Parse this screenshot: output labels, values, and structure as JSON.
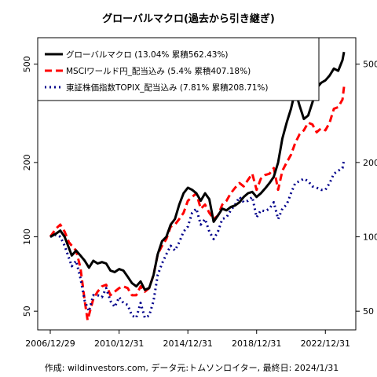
{
  "chart_data": {
    "type": "line",
    "title": "グローバルマクロ(過去から引き継ぎ)",
    "footer": "作成: wildinvestors.com, データ元:トムソンロイター, 最終日: 2024/1/31",
    "y_scale": "log",
    "ylim": [
      42,
      640
    ],
    "y_ticks": [
      {
        "value": 50,
        "label": "50"
      },
      {
        "value": 100,
        "label": "100"
      },
      {
        "value": 200,
        "label": "200"
      },
      {
        "value": 500,
        "label": "500"
      }
    ],
    "x_ticks": [
      {
        "value": "2006-12-29",
        "label": "2006/12/29"
      },
      {
        "value": "2010-12-31",
        "label": "2010/12/31"
      },
      {
        "value": "2014-12-31",
        "label": "2014/12/31"
      },
      {
        "value": "2018-12-31",
        "label": "2018/12/31"
      },
      {
        "value": "2022-12-31",
        "label": "2022/12/31"
      }
    ],
    "x_range": [
      "2006-12-29",
      "2024-01-31"
    ],
    "grid": false,
    "legend_position": "top-left",
    "series": [
      {
        "name": "グローバルマクロ (13.04% 累積562.43%)",
        "color": "#000000",
        "style": "solid",
        "points": [
          [
            "2006-12-29",
            100
          ],
          [
            "2007-04-30",
            103
          ],
          [
            "2007-07-31",
            106
          ],
          [
            "2007-10-31",
            100
          ],
          [
            "2008-01-31",
            90
          ],
          [
            "2008-03-31",
            84
          ],
          [
            "2008-06-30",
            88
          ],
          [
            "2008-09-30",
            84
          ],
          [
            "2008-12-31",
            80
          ],
          [
            "2009-03-31",
            75
          ],
          [
            "2009-06-30",
            80
          ],
          [
            "2009-09-30",
            78
          ],
          [
            "2009-12-31",
            79
          ],
          [
            "2010-03-31",
            78
          ],
          [
            "2010-06-30",
            73
          ],
          [
            "2010-09-30",
            72
          ],
          [
            "2010-12-31",
            74
          ],
          [
            "2011-03-31",
            73
          ],
          [
            "2011-06-30",
            69
          ],
          [
            "2011-09-30",
            65
          ],
          [
            "2011-12-31",
            63
          ],
          [
            "2012-03-31",
            66
          ],
          [
            "2012-06-30",
            61
          ],
          [
            "2012-09-30",
            62
          ],
          [
            "2012-12-31",
            70
          ],
          [
            "2013-03-31",
            85
          ],
          [
            "2013-06-30",
            96
          ],
          [
            "2013-09-30",
            100
          ],
          [
            "2013-12-31",
            112
          ],
          [
            "2014-03-31",
            118
          ],
          [
            "2014-06-30",
            135
          ],
          [
            "2014-09-30",
            150
          ],
          [
            "2014-12-31",
            158
          ],
          [
            "2015-03-31",
            155
          ],
          [
            "2015-06-30",
            150
          ],
          [
            "2015-09-30",
            140
          ],
          [
            "2015-12-31",
            150
          ],
          [
            "2016-03-31",
            142
          ],
          [
            "2016-06-30",
            115
          ],
          [
            "2016-09-30",
            122
          ],
          [
            "2016-12-31",
            130
          ],
          [
            "2017-03-31",
            128
          ],
          [
            "2017-06-30",
            132
          ],
          [
            "2017-09-30",
            134
          ],
          [
            "2017-12-31",
            138
          ],
          [
            "2018-03-31",
            145
          ],
          [
            "2018-06-30",
            150
          ],
          [
            "2018-09-30",
            152
          ],
          [
            "2018-12-31",
            145
          ],
          [
            "2019-03-31",
            150
          ],
          [
            "2019-06-30",
            157
          ],
          [
            "2019-09-30",
            165
          ],
          [
            "2019-12-31",
            175
          ],
          [
            "2020-03-31",
            200
          ],
          [
            "2020-06-30",
            250
          ],
          [
            "2020-09-30",
            290
          ],
          [
            "2020-12-31",
            330
          ],
          [
            "2021-03-31",
            390
          ],
          [
            "2021-06-30",
            340
          ],
          [
            "2021-09-30",
            300
          ],
          [
            "2021-12-31",
            310
          ],
          [
            "2022-03-31",
            350
          ],
          [
            "2022-06-30",
            400
          ],
          [
            "2022-09-30",
            420
          ],
          [
            "2022-12-31",
            430
          ],
          [
            "2023-03-31",
            450
          ],
          [
            "2023-06-30",
            480
          ],
          [
            "2023-09-30",
            470
          ],
          [
            "2023-12-31",
            520
          ],
          [
            "2024-01-31",
            560
          ]
        ]
      },
      {
        "name": "MSCIワールド円_配当込み (5.4% 累積407.18%)",
        "color": "#ff0000",
        "style": "dashed",
        "points": [
          [
            "2006-12-29",
            100
          ],
          [
            "2007-04-30",
            108
          ],
          [
            "2007-07-31",
            112
          ],
          [
            "2007-10-31",
            105
          ],
          [
            "2008-01-31",
            95
          ],
          [
            "2008-03-31",
            92
          ],
          [
            "2008-06-30",
            88
          ],
          [
            "2008-09-30",
            75
          ],
          [
            "2008-12-31",
            55
          ],
          [
            "2009-02-28",
            46
          ],
          [
            "2009-06-30",
            56
          ],
          [
            "2009-09-30",
            60
          ],
          [
            "2009-12-31",
            63
          ],
          [
            "2010-03-31",
            64
          ],
          [
            "2010-06-30",
            58
          ],
          [
            "2010-09-30",
            60
          ],
          [
            "2010-12-31",
            62
          ],
          [
            "2011-03-31",
            63
          ],
          [
            "2011-06-30",
            62
          ],
          [
            "2011-09-30",
            58
          ],
          [
            "2011-12-31",
            58
          ],
          [
            "2012-03-31",
            63
          ],
          [
            "2012-06-30",
            60
          ],
          [
            "2012-09-30",
            62
          ],
          [
            "2012-12-31",
            70
          ],
          [
            "2013-03-31",
            85
          ],
          [
            "2013-06-30",
            92
          ],
          [
            "2013-09-30",
            98
          ],
          [
            "2013-12-31",
            110
          ],
          [
            "2014-03-31",
            112
          ],
          [
            "2014-06-30",
            118
          ],
          [
            "2014-09-30",
            125
          ],
          [
            "2014-12-31",
            140
          ],
          [
            "2015-03-31",
            145
          ],
          [
            "2015-06-30",
            150
          ],
          [
            "2015-09-30",
            130
          ],
          [
            "2015-12-31",
            135
          ],
          [
            "2016-03-31",
            125
          ],
          [
            "2016-06-30",
            118
          ],
          [
            "2016-09-30",
            122
          ],
          [
            "2016-12-31",
            135
          ],
          [
            "2017-03-31",
            140
          ],
          [
            "2017-06-30",
            150
          ],
          [
            "2017-09-30",
            158
          ],
          [
            "2017-12-31",
            165
          ],
          [
            "2018-03-31",
            160
          ],
          [
            "2018-06-30",
            170
          ],
          [
            "2018-09-30",
            180
          ],
          [
            "2018-12-31",
            155
          ],
          [
            "2019-03-31",
            172
          ],
          [
            "2019-06-30",
            178
          ],
          [
            "2019-09-30",
            180
          ],
          [
            "2019-12-31",
            190
          ],
          [
            "2020-03-31",
            155
          ],
          [
            "2020-06-30",
            185
          ],
          [
            "2020-09-30",
            200
          ],
          [
            "2020-12-31",
            215
          ],
          [
            "2021-03-31",
            240
          ],
          [
            "2021-06-30",
            260
          ],
          [
            "2021-09-30",
            270
          ],
          [
            "2021-12-31",
            290
          ],
          [
            "2022-03-31",
            285
          ],
          [
            "2022-06-30",
            265
          ],
          [
            "2022-09-30",
            275
          ],
          [
            "2022-12-31",
            270
          ],
          [
            "2023-03-31",
            290
          ],
          [
            "2023-06-30",
            330
          ],
          [
            "2023-09-30",
            335
          ],
          [
            "2023-12-31",
            360
          ],
          [
            "2024-01-31",
            405
          ]
        ]
      },
      {
        "name": "東証株価指数TOPIX_配当込み (7.81% 累積208.71%)",
        "color": "#00008b",
        "style": "dotted",
        "points": [
          [
            "2006-12-29",
            100
          ],
          [
            "2007-04-30",
            102
          ],
          [
            "2007-07-31",
            100
          ],
          [
            "2007-10-31",
            92
          ],
          [
            "2008-01-31",
            82
          ],
          [
            "2008-03-31",
            76
          ],
          [
            "2008-06-30",
            80
          ],
          [
            "2008-09-30",
            68
          ],
          [
            "2008-12-31",
            55
          ],
          [
            "2009-03-31",
            50
          ],
          [
            "2009-06-30",
            58
          ],
          [
            "2009-09-30",
            58
          ],
          [
            "2009-12-31",
            57
          ],
          [
            "2010-03-31",
            62
          ],
          [
            "2010-06-30",
            55
          ],
          [
            "2010-09-30",
            52
          ],
          [
            "2010-12-31",
            57
          ],
          [
            "2011-03-31",
            54
          ],
          [
            "2011-06-30",
            53
          ],
          [
            "2011-09-30",
            48
          ],
          [
            "2011-12-31",
            47
          ],
          [
            "2012-03-31",
            54
          ],
          [
            "2012-06-30",
            47
          ],
          [
            "2012-09-30",
            48
          ],
          [
            "2012-12-31",
            55
          ],
          [
            "2013-03-31",
            70
          ],
          [
            "2013-06-30",
            78
          ],
          [
            "2013-09-30",
            85
          ],
          [
            "2013-12-31",
            92
          ],
          [
            "2014-03-31",
            88
          ],
          [
            "2014-06-30",
            95
          ],
          [
            "2014-09-30",
            105
          ],
          [
            "2014-12-31",
            110
          ],
          [
            "2015-03-31",
            125
          ],
          [
            "2015-06-30",
            130
          ],
          [
            "2015-09-30",
            112
          ],
          [
            "2015-12-31",
            118
          ],
          [
            "2016-03-31",
            105
          ],
          [
            "2016-06-30",
            98
          ],
          [
            "2016-09-30",
            105
          ],
          [
            "2016-12-31",
            118
          ],
          [
            "2017-03-31",
            120
          ],
          [
            "2017-06-30",
            128
          ],
          [
            "2017-09-30",
            135
          ],
          [
            "2017-12-31",
            145
          ],
          [
            "2018-03-31",
            138
          ],
          [
            "2018-06-30",
            140
          ],
          [
            "2018-09-30",
            145
          ],
          [
            "2018-12-31",
            120
          ],
          [
            "2019-03-31",
            128
          ],
          [
            "2019-06-30",
            127
          ],
          [
            "2019-09-30",
            130
          ],
          [
            "2019-12-31",
            138
          ],
          [
            "2020-03-31",
            118
          ],
          [
            "2020-06-30",
            130
          ],
          [
            "2020-09-30",
            135
          ],
          [
            "2020-12-31",
            150
          ],
          [
            "2021-03-31",
            165
          ],
          [
            "2021-06-30",
            168
          ],
          [
            "2021-09-30",
            172
          ],
          [
            "2021-12-31",
            168
          ],
          [
            "2022-03-31",
            160
          ],
          [
            "2022-06-30",
            158
          ],
          [
            "2022-09-30",
            155
          ],
          [
            "2022-12-31",
            155
          ],
          [
            "2023-03-31",
            165
          ],
          [
            "2023-06-30",
            180
          ],
          [
            "2023-09-30",
            185
          ],
          [
            "2023-12-31",
            190
          ],
          [
            "2024-01-31",
            205
          ]
        ]
      }
    ]
  }
}
